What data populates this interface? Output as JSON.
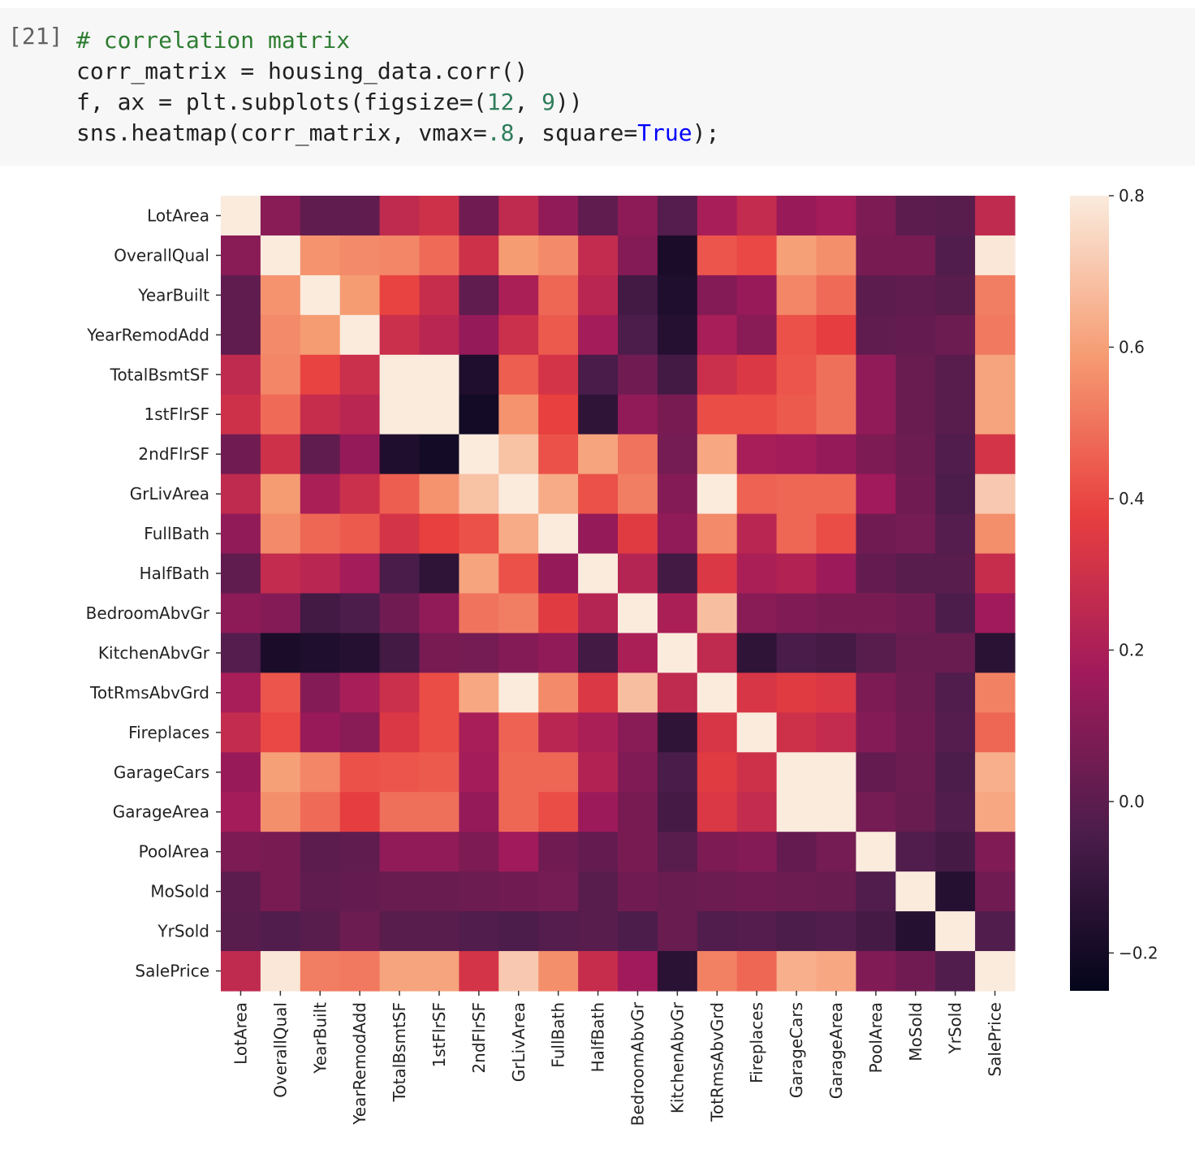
{
  "cell": {
    "prompt": "[21]",
    "comment": "# correlation matrix",
    "line2": "corr_matrix = housing_data.corr()",
    "line3_pre": "f, ax = plt.subplots(figsize=(",
    "line3_n1": "12",
    "line3_mid": ", ",
    "line3_n2": "9",
    "line3_post": "))",
    "line4_pre": "sns.heatmap(corr_matrix, vmax=",
    "line4_num": ".8",
    "line4_mid": ", square=",
    "line4_kw": "True",
    "line4_post": ");"
  },
  "chart_data": {
    "type": "heatmap",
    "title": "",
    "variables": [
      "LotArea",
      "OverallQual",
      "YearBuilt",
      "YearRemodAdd",
      "TotalBsmtSF",
      "1stFlrSF",
      "2ndFlrSF",
      "GrLivArea",
      "FullBath",
      "HalfBath",
      "BedroomAbvGr",
      "KitchenAbvGr",
      "TotRmsAbvGrd",
      "Fireplaces",
      "GarageCars",
      "GarageArea",
      "PoolArea",
      "MoSold",
      "YrSold",
      "SalePrice"
    ],
    "matrix": [
      [
        1.0,
        0.11,
        0.01,
        0.01,
        0.26,
        0.3,
        0.05,
        0.26,
        0.13,
        0.01,
        0.12,
        -0.02,
        0.19,
        0.27,
        0.15,
        0.18,
        0.08,
        0.0,
        -0.01,
        0.26
      ],
      [
        0.11,
        1.0,
        0.57,
        0.55,
        0.54,
        0.48,
        0.3,
        0.59,
        0.55,
        0.27,
        0.1,
        -0.18,
        0.43,
        0.4,
        0.6,
        0.56,
        0.07,
        0.07,
        -0.03,
        0.79
      ],
      [
        0.01,
        0.57,
        1.0,
        0.59,
        0.39,
        0.28,
        0.01,
        0.2,
        0.47,
        0.24,
        -0.07,
        -0.17,
        0.1,
        0.15,
        0.54,
        0.48,
        0.0,
        0.01,
        -0.01,
        0.52
      ],
      [
        0.01,
        0.55,
        0.59,
        1.0,
        0.29,
        0.24,
        0.14,
        0.29,
        0.44,
        0.18,
        -0.04,
        -0.15,
        0.19,
        0.11,
        0.42,
        0.37,
        0.01,
        0.02,
        0.04,
        0.51
      ],
      [
        0.26,
        0.54,
        0.39,
        0.29,
        1.0,
        0.82,
        -0.17,
        0.45,
        0.32,
        -0.05,
        0.05,
        -0.07,
        0.29,
        0.34,
        0.43,
        0.49,
        0.13,
        0.03,
        -0.01,
        0.61
      ],
      [
        0.3,
        0.48,
        0.28,
        0.24,
        0.82,
        1.0,
        -0.2,
        0.57,
        0.38,
        -0.12,
        0.13,
        0.07,
        0.41,
        0.41,
        0.44,
        0.49,
        0.13,
        0.03,
        -0.01,
        0.61
      ],
      [
        0.05,
        0.3,
        0.01,
        0.14,
        -0.17,
        -0.2,
        1.0,
        0.69,
        0.42,
        0.61,
        0.5,
        0.06,
        0.62,
        0.19,
        0.18,
        0.14,
        0.08,
        0.04,
        -0.03,
        0.32
      ],
      [
        0.26,
        0.59,
        0.2,
        0.29,
        0.45,
        0.57,
        0.69,
        1.0,
        0.63,
        0.42,
        0.52,
        0.1,
        0.83,
        0.46,
        0.47,
        0.47,
        0.17,
        0.05,
        -0.04,
        0.71
      ],
      [
        0.13,
        0.55,
        0.47,
        0.44,
        0.32,
        0.38,
        0.42,
        0.63,
        1.0,
        0.14,
        0.36,
        0.13,
        0.55,
        0.24,
        0.47,
        0.41,
        0.05,
        0.06,
        -0.02,
        0.56
      ],
      [
        0.01,
        0.27,
        0.24,
        0.18,
        -0.05,
        -0.12,
        0.61,
        0.42,
        0.14,
        1.0,
        0.23,
        -0.07,
        0.34,
        0.2,
        0.22,
        0.16,
        0.02,
        -0.01,
        -0.01,
        0.28
      ],
      [
        0.12,
        0.1,
        -0.07,
        -0.04,
        0.05,
        0.13,
        0.5,
        0.52,
        0.36,
        0.23,
        1.0,
        0.2,
        0.68,
        0.11,
        0.09,
        0.07,
        0.07,
        0.05,
        -0.04,
        0.17
      ],
      [
        -0.02,
        -0.18,
        -0.17,
        -0.15,
        -0.07,
        0.07,
        0.06,
        0.1,
        0.13,
        -0.07,
        0.2,
        1.0,
        0.26,
        -0.12,
        -0.05,
        -0.06,
        -0.01,
        0.03,
        0.03,
        -0.14
      ],
      [
        0.19,
        0.43,
        0.1,
        0.19,
        0.29,
        0.41,
        0.62,
        0.83,
        0.55,
        0.34,
        0.68,
        0.26,
        1.0,
        0.33,
        0.36,
        0.34,
        0.08,
        0.04,
        -0.03,
        0.53
      ],
      [
        0.27,
        0.4,
        0.15,
        0.11,
        0.34,
        0.41,
        0.19,
        0.46,
        0.24,
        0.2,
        0.11,
        -0.12,
        0.33,
        1.0,
        0.3,
        0.27,
        0.1,
        0.05,
        -0.02,
        0.47
      ],
      [
        0.15,
        0.6,
        0.54,
        0.42,
        0.43,
        0.44,
        0.18,
        0.47,
        0.47,
        0.22,
        0.09,
        -0.05,
        0.36,
        0.3,
        1.0,
        0.88,
        0.02,
        0.04,
        -0.04,
        0.64
      ],
      [
        0.18,
        0.56,
        0.48,
        0.37,
        0.49,
        0.49,
        0.14,
        0.47,
        0.41,
        0.16,
        0.07,
        -0.06,
        0.34,
        0.27,
        0.88,
        1.0,
        0.06,
        0.03,
        -0.03,
        0.62
      ],
      [
        0.08,
        0.07,
        0.0,
        0.01,
        0.13,
        0.13,
        0.08,
        0.17,
        0.05,
        0.02,
        0.07,
        -0.01,
        0.08,
        0.1,
        0.02,
        0.06,
        1.0,
        -0.03,
        -0.06,
        0.09
      ],
      [
        0.0,
        0.07,
        0.01,
        0.02,
        0.03,
        0.03,
        0.04,
        0.05,
        0.06,
        -0.01,
        0.05,
        0.03,
        0.04,
        0.05,
        0.04,
        0.03,
        -0.03,
        1.0,
        -0.15,
        0.05
      ],
      [
        -0.01,
        -0.03,
        -0.01,
        0.04,
        -0.01,
        -0.01,
        -0.03,
        -0.04,
        -0.02,
        -0.01,
        -0.04,
        0.03,
        -0.03,
        -0.02,
        -0.04,
        -0.03,
        -0.06,
        -0.15,
        1.0,
        -0.03
      ],
      [
        0.26,
        0.79,
        0.52,
        0.51,
        0.61,
        0.61,
        0.32,
        0.71,
        0.56,
        0.28,
        0.17,
        -0.14,
        0.53,
        0.47,
        0.64,
        0.62,
        0.09,
        0.05,
        -0.03,
        1.0
      ]
    ],
    "vmin": -0.25,
    "vmax": 0.8,
    "colorbar_ticks": [
      0.8,
      0.6,
      0.4,
      0.2,
      0.0,
      -0.2
    ],
    "colorbar_tick_labels": [
      "0.8",
      "0.6",
      "0.4",
      "0.2",
      "0.0",
      "−0.2"
    ],
    "colormap": "rocket",
    "colormap_stops": [
      "#03051a",
      "#4c1d4b",
      "#a11a5b",
      "#e83f3f",
      "#f69c73",
      "#faebdd"
    ],
    "square": true
  }
}
